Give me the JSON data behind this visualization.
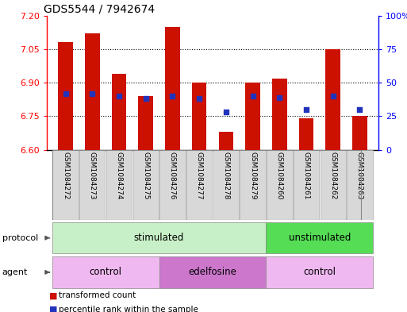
{
  "title": "GDS5544 / 7942674",
  "samples": [
    "GSM1084272",
    "GSM1084273",
    "GSM1084274",
    "GSM1084275",
    "GSM1084276",
    "GSM1084277",
    "GSM1084278",
    "GSM1084279",
    "GSM1084260",
    "GSM1084261",
    "GSM1084262",
    "GSM1084263"
  ],
  "bar_values": [
    7.08,
    7.12,
    6.94,
    6.84,
    7.15,
    6.9,
    6.68,
    6.9,
    6.92,
    6.74,
    7.05,
    6.75
  ],
  "percentile_values": [
    42,
    42,
    40,
    38,
    40,
    38,
    28,
    40,
    39,
    30,
    40,
    30
  ],
  "ylim_left": [
    6.6,
    7.2
  ],
  "ylim_right": [
    0,
    100
  ],
  "yticks_left": [
    6.6,
    6.75,
    6.9,
    7.05,
    7.2
  ],
  "yticks_right": [
    0,
    25,
    50,
    75,
    100
  ],
  "ytick_labels_right": [
    "0",
    "25",
    "50",
    "75",
    "100%"
  ],
  "bar_color": "#cc1100",
  "dot_color": "#2233bb",
  "bar_base": 6.6,
  "bar_width": 0.55,
  "protocol_stim_color": "#c8f0c8",
  "protocol_unstim_color": "#55dd55",
  "agent_control_color": "#f0b8f0",
  "agent_edel_color": "#cc77cc",
  "legend_items": [
    "transformed count",
    "percentile rank within the sample"
  ],
  "title_fontsize": 10,
  "tick_fontsize": 8,
  "sample_fontsize": 6.5,
  "row_label_fontsize": 8,
  "row_text_fontsize": 8.5,
  "legend_fontsize": 7.5
}
